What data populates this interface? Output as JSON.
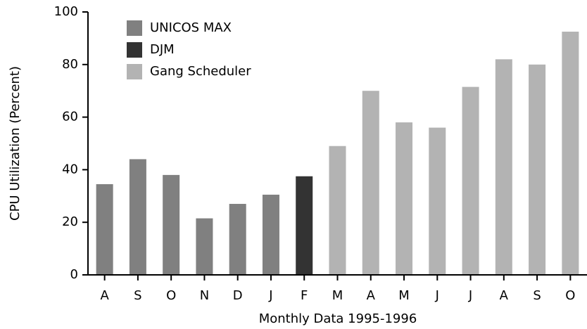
{
  "chart_data": {
    "type": "bar",
    "xlabel": "Monthly Data 1995-1996",
    "ylabel": "CPU Utilization (Percent)",
    "categories": [
      "A",
      "S",
      "O",
      "N",
      "D",
      "J",
      "F",
      "M",
      "A",
      "M",
      "J",
      "J",
      "A",
      "S",
      "O"
    ],
    "series": [
      {
        "name": "UNICOS MAX",
        "color": "#808080",
        "values": [
          34.5,
          44,
          38,
          21.5,
          27,
          30.5,
          null,
          null,
          null,
          null,
          null,
          null,
          null,
          null,
          null
        ]
      },
      {
        "name": "DJM",
        "color": "#333333",
        "values": [
          null,
          null,
          null,
          null,
          null,
          null,
          37.5,
          null,
          null,
          null,
          null,
          null,
          null,
          null,
          null
        ]
      },
      {
        "name": "Gang Scheduler",
        "color": "#b3b3b3",
        "values": [
          null,
          null,
          null,
          null,
          null,
          null,
          null,
          49,
          70,
          58,
          56,
          71.5,
          82,
          80,
          92.5
        ]
      }
    ],
    "ylim": [
      0,
      100
    ],
    "yticks": [
      0,
      20,
      40,
      60,
      80,
      100
    ],
    "legend": "upper left"
  }
}
